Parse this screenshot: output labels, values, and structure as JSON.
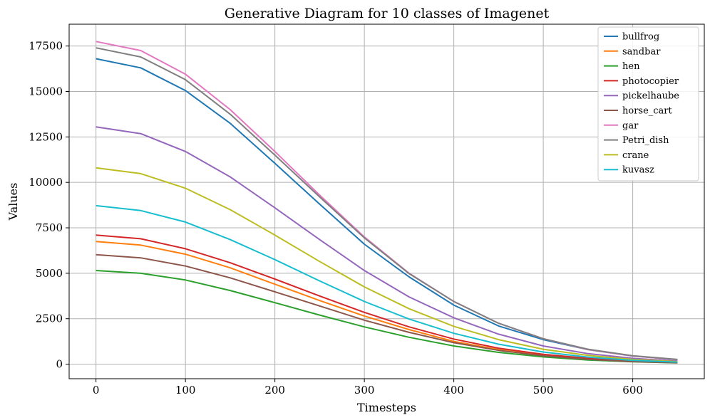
{
  "chart_data": {
    "type": "line",
    "title": "Generative Diagram for 10 classes of Imagenet",
    "xlabel": "Timesteps",
    "ylabel": "Values",
    "xlim": [
      -30,
      680
    ],
    "ylim": [
      -800,
      18700
    ],
    "xticks": [
      0,
      100,
      200,
      300,
      400,
      500,
      600
    ],
    "yticks": [
      0,
      2500,
      5000,
      7500,
      10000,
      12500,
      15000,
      17500
    ],
    "grid": true,
    "legend_position": "top-right",
    "x": [
      0,
      50,
      100,
      150,
      200,
      250,
      300,
      350,
      400,
      450,
      500,
      550,
      600,
      650
    ],
    "series": [
      {
        "name": "bullfrog",
        "color": "#1f77b4",
        "values": [
          16800,
          16300,
          15050,
          13250,
          11050,
          8800,
          6600,
          4800,
          3250,
          2100,
          1350,
          800,
          450,
          250
        ]
      },
      {
        "name": "sandbar",
        "color": "#ff7f0e",
        "values": [
          6750,
          6550,
          6050,
          5300,
          4400,
          3500,
          2650,
          1900,
          1250,
          800,
          480,
          280,
          150,
          80
        ]
      },
      {
        "name": "hen",
        "color": "#2ca02c",
        "values": [
          5150,
          5000,
          4630,
          4050,
          3380,
          2700,
          2050,
          1480,
          1000,
          650,
          400,
          230,
          130,
          70
        ]
      },
      {
        "name": "photocopier",
        "color": "#d62728",
        "values": [
          7100,
          6900,
          6350,
          5580,
          4680,
          3750,
          2850,
          2050,
          1380,
          880,
          540,
          320,
          170,
          90
        ]
      },
      {
        "name": "pickelhaube",
        "color": "#9467bd",
        "values": [
          13050,
          12680,
          11700,
          10300,
          8600,
          6850,
          5150,
          3700,
          2550,
          1650,
          1000,
          580,
          320,
          170
        ]
      },
      {
        "name": "horse_cart",
        "color": "#8c564b",
        "values": [
          6020,
          5850,
          5400,
          4750,
          3980,
          3200,
          2420,
          1750,
          1180,
          760,
          460,
          270,
          140,
          80
        ]
      },
      {
        "name": "gar",
        "color": "#e377c2",
        "values": [
          17750,
          17250,
          15950,
          14000,
          11700,
          9300,
          7000,
          5000,
          3450,
          2250,
          1400,
          800,
          450,
          250
        ]
      },
      {
        "name": "Petri_dish",
        "color": "#7f7f7f",
        "values": [
          17400,
          16900,
          15650,
          13750,
          11500,
          9200,
          6950,
          4980,
          3450,
          2250,
          1400,
          820,
          460,
          260
        ]
      },
      {
        "name": "crane",
        "color": "#bcbd22",
        "values": [
          10800,
          10480,
          9680,
          8500,
          7100,
          5650,
          4250,
          3050,
          2080,
          1350,
          820,
          480,
          260,
          140
        ]
      },
      {
        "name": "kuvasz",
        "color": "#17becf",
        "values": [
          8720,
          8450,
          7820,
          6850,
          5750,
          4580,
          3450,
          2480,
          1700,
          1100,
          670,
          390,
          210,
          110
        ]
      }
    ]
  }
}
